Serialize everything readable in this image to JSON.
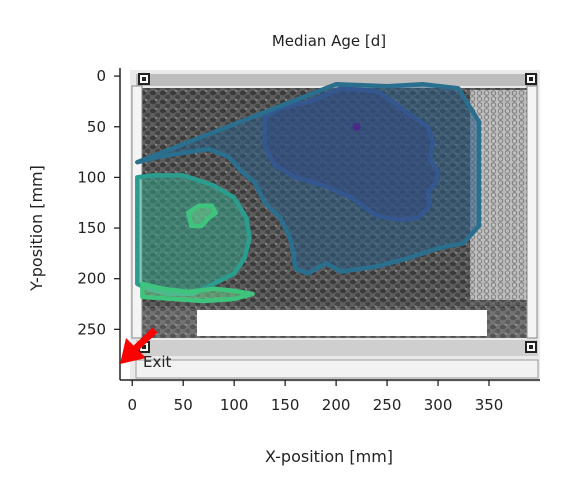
{
  "chart_data": {
    "type": "heatmap",
    "title": "Median Age [d]",
    "xlabel": "X-position [mm]",
    "ylabel": "Y-position [mm]",
    "xlim": [
      -12,
      400
    ],
    "ylim": [
      300,
      -8
    ],
    "xticks": [
      0,
      50,
      100,
      150,
      200,
      250,
      300,
      350
    ],
    "yticks": [
      0,
      50,
      100,
      150,
      200,
      250
    ],
    "grid": false,
    "annotation": {
      "text": "Exit",
      "x": 8,
      "y": 283,
      "arrow_from": [
        22,
        248
      ],
      "arrow_to": [
        -12,
        288
      ]
    },
    "background": "photo of honeycomb frame with bees",
    "colormap": "viridis (dark purple = low, green = high)",
    "contours": [
      {
        "level": "low",
        "color": "#3f4f9a",
        "fill": "#3b2f7a",
        "points": [
          [
            130,
            40
          ],
          [
            150,
            30
          ],
          [
            175,
            25
          ],
          [
            205,
            12
          ],
          [
            240,
            15
          ],
          [
            255,
            25
          ],
          [
            275,
            40
          ],
          [
            290,
            50
          ],
          [
            295,
            65
          ],
          [
            292,
            82
          ],
          [
            300,
            95
          ],
          [
            298,
            105
          ],
          [
            290,
            115
          ],
          [
            292,
            128
          ],
          [
            280,
            140
          ],
          [
            262,
            142
          ],
          [
            240,
            138
          ],
          [
            215,
            120
          ],
          [
            188,
            108
          ],
          [
            160,
            100
          ],
          [
            140,
            88
          ],
          [
            130,
            70
          ]
        ]
      },
      {
        "level": "mid",
        "color": "#2a6f8e",
        "fill": "#2b5f86",
        "points": [
          [
            5,
            85
          ],
          [
            25,
            80
          ],
          [
            55,
            75
          ],
          [
            75,
            72
          ],
          [
            95,
            80
          ],
          [
            108,
            95
          ],
          [
            120,
            105
          ],
          [
            130,
            125
          ],
          [
            145,
            140
          ],
          [
            155,
            160
          ],
          [
            158,
            175
          ],
          [
            160,
            190
          ],
          [
            172,
            195
          ],
          [
            190,
            185
          ],
          [
            205,
            193
          ],
          [
            240,
            188
          ],
          [
            270,
            180
          ],
          [
            300,
            170
          ],
          [
            325,
            165
          ],
          [
            340,
            148
          ],
          [
            340,
            45
          ],
          [
            320,
            12
          ],
          [
            285,
            8
          ],
          [
            250,
            10
          ],
          [
            200,
            8
          ]
        ]
      },
      {
        "level": "high",
        "color": "#2a9d8f",
        "fill": "#35a488",
        "points": [
          [
            5,
            100
          ],
          [
            20,
            98
          ],
          [
            50,
            98
          ],
          [
            80,
            108
          ],
          [
            100,
            120
          ],
          [
            112,
            140
          ],
          [
            115,
            160
          ],
          [
            110,
            180
          ],
          [
            100,
            195
          ],
          [
            80,
            205
          ],
          [
            60,
            215
          ],
          [
            35,
            215
          ],
          [
            15,
            210
          ],
          [
            5,
            205
          ]
        ]
      },
      {
        "level": "highest",
        "color": "#3fc47e",
        "fill": "#6ccf8a",
        "points": [
          [
            55,
            135
          ],
          [
            65,
            128
          ],
          [
            78,
            128
          ],
          [
            82,
            135
          ],
          [
            75,
            140
          ],
          [
            68,
            148
          ],
          [
            58,
            148
          ]
        ]
      },
      {
        "level": "highest",
        "color": "#3fc47e",
        "fill": "#6ccf8a",
        "points": [
          [
            10,
            205
          ],
          [
            30,
            210
          ],
          [
            55,
            213
          ],
          [
            80,
            210
          ],
          [
            100,
            212
          ],
          [
            118,
            215
          ],
          [
            100,
            220
          ],
          [
            70,
            222
          ],
          [
            40,
            220
          ],
          [
            10,
            218
          ]
        ]
      }
    ],
    "minimum_marker": {
      "x": 220,
      "y": 50,
      "color": "#4a2a8a"
    },
    "colors": {
      "frame": "#cfcfcf",
      "comb": "#6e6e6e",
      "arrow": "#ff0000"
    }
  }
}
